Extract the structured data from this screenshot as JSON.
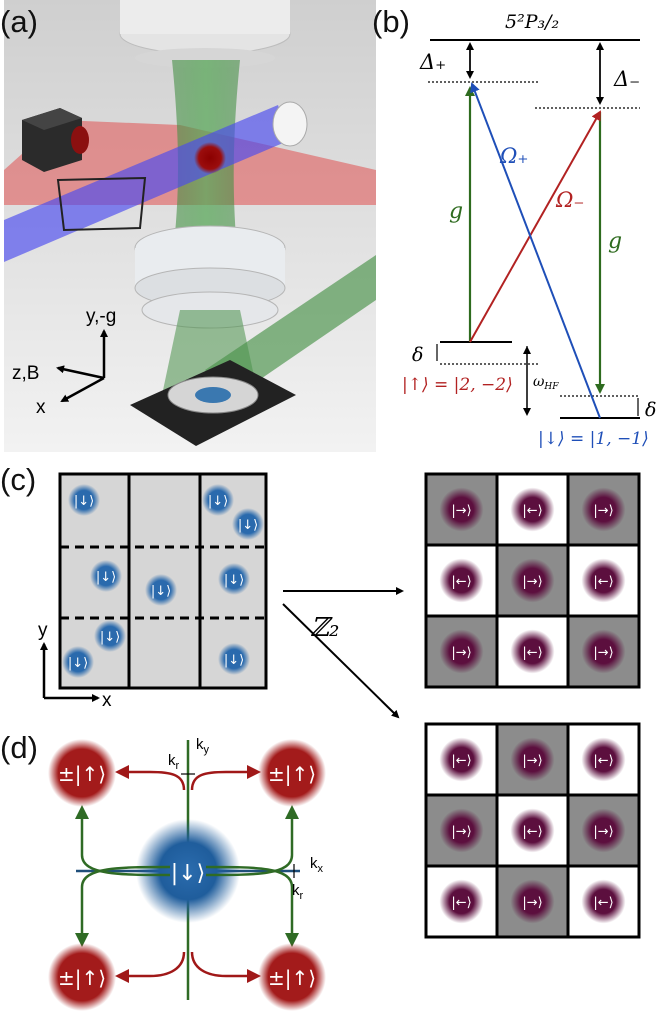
{
  "panels": {
    "a": "(a)",
    "b": "(b)",
    "c": "(c)",
    "d": "(d)"
  },
  "panel_a": {
    "axis_up": "y,-g",
    "axis_left": "z,B",
    "axis_down": "x"
  },
  "panel_b": {
    "excited_level": "5²P₃/₂",
    "delta_plus": "Δ₊",
    "delta_minus": "Δ₋",
    "omega_plus": "Ω₊",
    "omega_minus": "Ω₋",
    "g_left": "g",
    "g_right": "g",
    "delta_left": "δ",
    "delta_right": "δ",
    "omega_hf": "ω",
    "omega_hf_sub": "HF",
    "state_up": "|↑⟩ = |2, −2⟩",
    "state_down": "|↓⟩ = |1, −1⟩",
    "colors": {
      "red": "#b22222",
      "blue": "#1f4fb8",
      "green": "#2e6b1f"
    }
  },
  "panel_c": {
    "atom_label": "|↓⟩",
    "axis_y": "y",
    "axis_x": "x",
    "z2": "ℤ₂",
    "right_top": [
      [
        "|→⟩",
        "|←⟩",
        "|→⟩"
      ],
      [
        "|←⟩",
        "|→⟩",
        "|←⟩"
      ],
      [
        "|→⟩",
        "|←⟩",
        "|→⟩"
      ]
    ],
    "right_bottom": [
      [
        "|←⟩",
        "|→⟩",
        "|←⟩"
      ],
      [
        "|→⟩",
        "|←⟩",
        "|→⟩"
      ],
      [
        "|←⟩",
        "|→⟩",
        "|←⟩"
      ]
    ]
  },
  "panel_d": {
    "center_state": "|↓⟩",
    "corner_state": "±|↑⟩",
    "ky": "k",
    "ky_sub": "y",
    "kx": "k",
    "kx_sub": "x",
    "kr_top": "k",
    "kr_top_sub": "r",
    "kr_right": "k",
    "kr_right_sub": "r"
  }
}
